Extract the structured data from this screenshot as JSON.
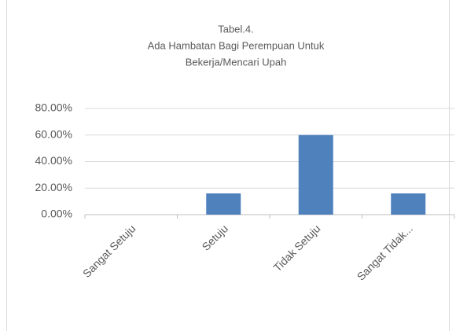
{
  "chart_data": {
    "type": "bar",
    "title": [
      "Tabel.4.",
      "Ada Hambatan Bagi Perempuan Untuk",
      "Bekerja/Mencari Upah"
    ],
    "categories": [
      "Sangat Setuju",
      "Setuju",
      "Tidak Setuju",
      "Sangat Tidak..."
    ],
    "values": [
      0,
      16,
      60,
      16
    ],
    "color": "#4f81bd",
    "ylim": [
      0,
      80
    ],
    "yticks": [
      {
        "value": 0,
        "label": "0.00%"
      },
      {
        "value": 20,
        "label": "20.00%"
      },
      {
        "value": 40,
        "label": "40.00%"
      },
      {
        "value": 60,
        "label": "60.00%"
      },
      {
        "value": 80,
        "label": "80.00%"
      }
    ],
    "grid": true
  }
}
